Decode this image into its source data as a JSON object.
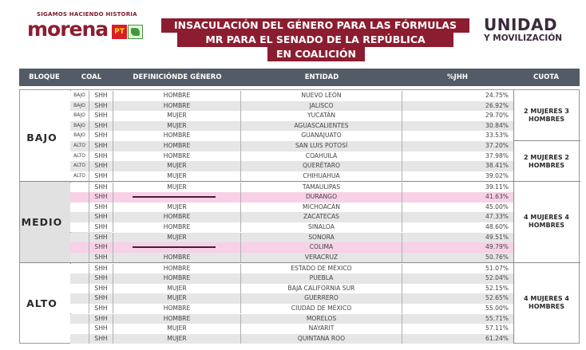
{
  "header": {
    "left_logo": {
      "tagline": "SIGAMOS HACIENDO HISTORIA",
      "brand": "morena",
      "pt_label": "PT"
    },
    "title_lines": [
      "INSACULACIÓN DEL GÉNERO PARA LAS FÓRMULAS",
      "MR PARA EL SENADO DE LA REPÚBLICA",
      "EN COALICIÓN"
    ],
    "right_logo": {
      "line1": "UNIDAD",
      "line2": "Y MOVILIZACIÓN"
    },
    "colors": {
      "brand": "#8c1d30",
      "header_bar": "#525b66",
      "highlight_row": "#f7d1e6"
    }
  },
  "table": {
    "columns": [
      "BLOQUE",
      "COAL",
      "DEFINICIÓNDE GÉNERO",
      "ENTIDAD",
      "%JHH",
      "CUOTA"
    ],
    "blocks": [
      {
        "label": "BAJO",
        "quotas": [
          "2 MUJERES 3 HOMBRES",
          "2 MUJERES 2 HOMBRES"
        ],
        "rows": [
          {
            "sub": "BAJO",
            "coal": "SHH",
            "genero": "HOMBRE",
            "entidad": "NUEVO LEÓN",
            "pct": "24.75%"
          },
          {
            "sub": "BAJO",
            "coal": "SHH",
            "genero": "HOMBRE",
            "entidad": "JALISCO",
            "pct": "26.92%"
          },
          {
            "sub": "BAJO",
            "coal": "SHH",
            "genero": "MUJER",
            "entidad": "YUCATÁN",
            "pct": "29.70%"
          },
          {
            "sub": "BAJO",
            "coal": "SHH",
            "genero": "MUJER",
            "entidad": "AGUASCALIENTES",
            "pct": "30.84%"
          },
          {
            "sub": "BAJO",
            "coal": "SHH",
            "genero": "HOMBRE",
            "entidad": "GUANAJUATO",
            "pct": "33.53%"
          },
          {
            "sub": "ALTO",
            "coal": "SHH",
            "genero": "HOMBRE",
            "entidad": "SAN LUIS POTOSÍ",
            "pct": "37.20%"
          },
          {
            "sub": "ALTO",
            "coal": "SHH",
            "genero": "HOMBRE",
            "entidad": "COAHUILA",
            "pct": "37.98%"
          },
          {
            "sub": "ALTO",
            "coal": "SHH",
            "genero": "MUJER",
            "entidad": "QUERÉTARO",
            "pct": "38.41%"
          },
          {
            "sub": "ALTO",
            "coal": "SHH",
            "genero": "MUJER",
            "entidad": "CHIHUAHUA",
            "pct": "39.02%"
          }
        ]
      },
      {
        "label": "MEDIO",
        "quotas": [
          "4 MUJERES 4 HOMBRES"
        ],
        "rows": [
          {
            "sub": "",
            "coal": "SHH",
            "genero": "MUJER",
            "entidad": "TAMAULIPAS",
            "pct": "39.11%"
          },
          {
            "sub": "",
            "coal": "SHH",
            "genero": "",
            "entidad": "DURANGO",
            "pct": "41.63%",
            "highlight": true
          },
          {
            "sub": "",
            "coal": "SHH",
            "genero": "MUJER",
            "entidad": "MICHOACÁN",
            "pct": "45.00%"
          },
          {
            "sub": "",
            "coal": "SHH",
            "genero": "HOMBRE",
            "entidad": "ZACATECAS",
            "pct": "47.33%"
          },
          {
            "sub": "",
            "coal": "SHH",
            "genero": "HOMBRE",
            "entidad": "SINALOA",
            "pct": "48.60%"
          },
          {
            "sub": "",
            "coal": "SHH",
            "genero": "MUJER",
            "entidad": "SONORA",
            "pct": "49.51%"
          },
          {
            "sub": "",
            "coal": "SHH",
            "genero": "",
            "entidad": "COLIMA",
            "pct": "49.79%",
            "highlight": true
          },
          {
            "sub": "",
            "coal": "SHH",
            "genero": "HOMBRE",
            "entidad": "VERACRUZ",
            "pct": "50.76%"
          }
        ]
      },
      {
        "label": "ALTO",
        "quotas": [
          "4 MUJERES 4 HOMBRES"
        ],
        "rows": [
          {
            "sub": "",
            "coal": "SHH",
            "genero": "HOMBRE",
            "entidad": "ESTADO DE MÉXICO",
            "pct": "51.07%"
          },
          {
            "sub": "",
            "coal": "SHH",
            "genero": "HOMBRE",
            "entidad": "PUEBLA",
            "pct": "52.04%"
          },
          {
            "sub": "",
            "coal": "SHH",
            "genero": "MUJER",
            "entidad": "BAJA CALIFORNIA SUR",
            "pct": "52.15%"
          },
          {
            "sub": "",
            "coal": "SHH",
            "genero": "MUJER",
            "entidad": "GUERRERO",
            "pct": "52.65%"
          },
          {
            "sub": "",
            "coal": "SHH",
            "genero": "HOMBRE",
            "entidad": "CIUDAD DE MÉXICO",
            "pct": "55.00%"
          },
          {
            "sub": "",
            "coal": "SHH",
            "genero": "HOMBRE",
            "entidad": "MORELOS",
            "pct": "55.71%"
          },
          {
            "sub": "",
            "coal": "SHH",
            "genero": "MUJER",
            "entidad": "NAYARIT",
            "pct": "57.11%"
          },
          {
            "sub": "",
            "coal": "SHH",
            "genero": "MUJER",
            "entidad": "QUINTANA ROO",
            "pct": "61.24%"
          }
        ]
      }
    ]
  }
}
